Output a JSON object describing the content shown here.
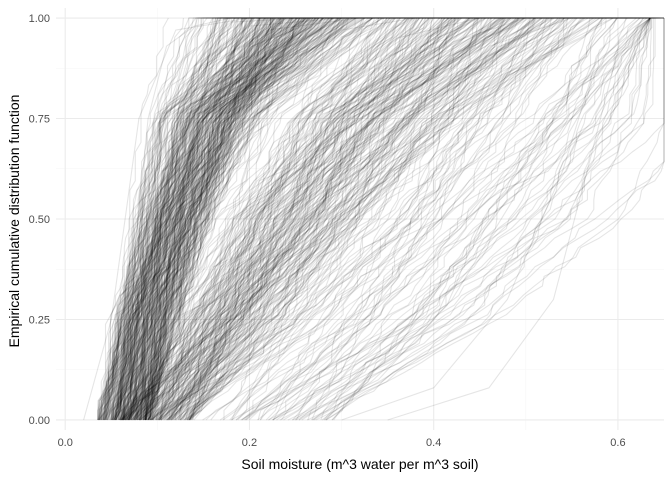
{
  "chart_data": {
    "type": "line",
    "title": "",
    "xlabel": "Soil moisture (m^3 water per m^3 soil)",
    "ylabel": "Empirical cumulative distribution function",
    "xlim": [
      -0.01,
      0.65
    ],
    "ylim": [
      -0.025,
      1.025
    ],
    "x_ticks": [
      0.0,
      0.2,
      0.4,
      0.6
    ],
    "x_tick_labels": [
      "0.0",
      "0.2",
      "0.4",
      "0.6"
    ],
    "y_ticks": [
      0.0,
      0.25,
      0.5,
      0.75,
      1.0
    ],
    "y_tick_labels": [
      "0.00",
      "0.25",
      "0.50",
      "0.75",
      "1.00"
    ],
    "grid": true,
    "legend": "none",
    "line_color": "#000000",
    "line_alpha": 0.1,
    "series_count_approx": 600,
    "series": [
      {
        "x": [
          0.02,
          0.05,
          0.08,
          0.12,
          0.2,
          0.3
        ],
        "y": [
          0.0,
          0.25,
          0.75,
          0.97,
          1.0,
          1.0
        ]
      },
      {
        "x": [
          0.05,
          0.07,
          0.09,
          0.11,
          0.14,
          0.18,
          0.25
        ],
        "y": [
          0.0,
          0.3,
          0.75,
          0.93,
          0.98,
          1.0,
          1.0
        ]
      },
      {
        "x": [
          0.06,
          0.08,
          0.1,
          0.13,
          0.18,
          0.26
        ],
        "y": [
          0.0,
          0.25,
          0.65,
          0.9,
          0.99,
          1.0
        ]
      },
      {
        "x": [
          0.07,
          0.09,
          0.11,
          0.14,
          0.2,
          0.3
        ],
        "y": [
          0.0,
          0.25,
          0.6,
          0.88,
          0.98,
          1.0
        ]
      },
      {
        "x": [
          0.08,
          0.1,
          0.12,
          0.16,
          0.22,
          0.32
        ],
        "y": [
          0.0,
          0.25,
          0.6,
          0.88,
          0.97,
          1.0
        ]
      },
      {
        "x": [
          0.08,
          0.12,
          0.16,
          0.22,
          0.3,
          0.38
        ],
        "y": [
          0.0,
          0.3,
          0.6,
          0.85,
          0.97,
          1.0
        ]
      },
      {
        "x": [
          0.09,
          0.14,
          0.2,
          0.28,
          0.36,
          0.45
        ],
        "y": [
          0.0,
          0.25,
          0.55,
          0.8,
          0.95,
          1.0
        ]
      },
      {
        "x": [
          0.1,
          0.18,
          0.26,
          0.34,
          0.42,
          0.5
        ],
        "y": [
          0.0,
          0.2,
          0.5,
          0.78,
          0.94,
          1.0
        ]
      },
      {
        "x": [
          0.12,
          0.22,
          0.3,
          0.38,
          0.46,
          0.55
        ],
        "y": [
          0.0,
          0.15,
          0.45,
          0.75,
          0.93,
          1.0
        ]
      },
      {
        "x": [
          0.18,
          0.28,
          0.36,
          0.44,
          0.52,
          0.58
        ],
        "y": [
          0.0,
          0.12,
          0.35,
          0.65,
          0.9,
          1.0
        ]
      },
      {
        "x": [
          0.25,
          0.34,
          0.42,
          0.5,
          0.56,
          0.6
        ],
        "y": [
          0.0,
          0.1,
          0.3,
          0.6,
          0.9,
          1.0
        ]
      },
      {
        "x": [
          0.3,
          0.4,
          0.48,
          0.54,
          0.58,
          0.62
        ],
        "y": [
          0.0,
          0.08,
          0.3,
          0.62,
          0.92,
          1.0
        ]
      },
      {
        "x": [
          0.35,
          0.46,
          0.53,
          0.57,
          0.6,
          0.635
        ],
        "y": [
          0.0,
          0.08,
          0.3,
          0.65,
          0.92,
          1.0
        ]
      }
    ]
  }
}
